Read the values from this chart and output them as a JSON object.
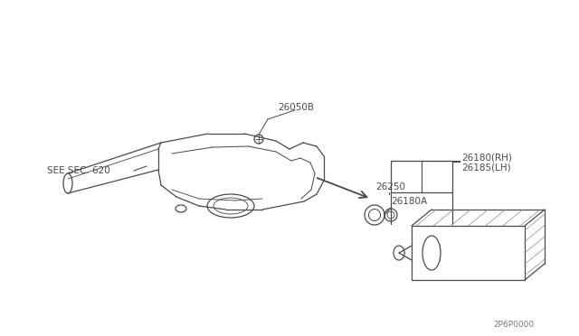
{
  "bg_color": "#ffffff",
  "line_color": "#4a4a4a",
  "text_color": "#4a4a4a",
  "fig_width": 6.4,
  "fig_height": 3.72,
  "dpi": 100,
  "watermark": "2P6P0000",
  "labels": {
    "see_sec": "SEE SEC. 620",
    "p26050B": "26050B",
    "p26180RH": "26180(RH)",
    "p26185LH": "26185(LH)",
    "p26250": "26250",
    "p26180A": "26180A"
  }
}
